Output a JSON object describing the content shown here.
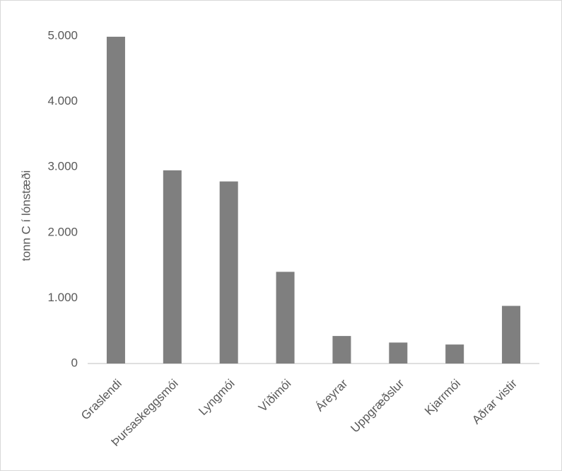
{
  "chart_data": {
    "type": "bar",
    "y_axis_label": "tonn C í lónstæði",
    "categories": [
      "Graslendi",
      "Þursaskeggsmói",
      "Lyngmói",
      "Víðimói",
      "Áreyrar",
      "Uppgræðslur",
      "Kjarrmói",
      "Aðrar vistir"
    ],
    "values": [
      4990,
      2950,
      2780,
      1400,
      420,
      320,
      290,
      880
    ],
    "color": "#7f7f7f",
    "ylim": [
      0,
      5000
    ],
    "yticks": [
      0,
      {
        "value": 1000,
        "label": "1.000"
      },
      {
        "value": 2000,
        "label": "2.000"
      },
      {
        "value": 3000,
        "label": "3.000"
      },
      {
        "value": 4000,
        "label": "4.000"
      },
      {
        "value": 5000,
        "label": "5.000"
      }
    ],
    "grid": false
  }
}
